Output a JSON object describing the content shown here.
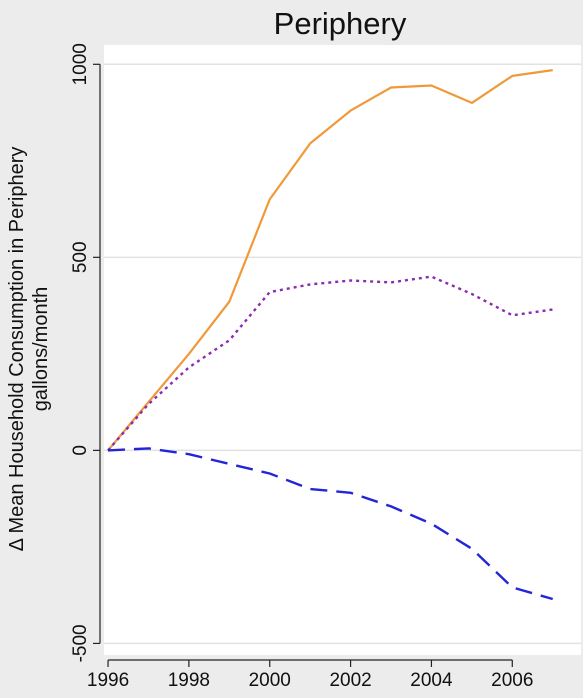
{
  "chart_data": {
    "type": "line",
    "title": "Periphery",
    "ylabel_line1": "Δ Mean Household Consumption in Periphery",
    "ylabel_line2": "gallons/month",
    "xlabel": "",
    "x": [
      1996,
      1997,
      1998,
      1999,
      2000,
      2001,
      2002,
      2003,
      2004,
      2005,
      2006,
      2007
    ],
    "xticks": [
      1996,
      1998,
      2000,
      2002,
      2004,
      2006
    ],
    "yticks": [
      -500,
      0,
      500,
      1000
    ],
    "xlim": [
      1995.9,
      2007.7
    ],
    "ylim": [
      -530,
      1050
    ],
    "grid": true,
    "legend": "none",
    "series": [
      {
        "style": "solid",
        "color": "#f0993a",
        "values": [
          0,
          125,
          250,
          385,
          650,
          795,
          880,
          940,
          945,
          900,
          970,
          985
        ]
      },
      {
        "style": "dotted",
        "color": "#8a2cb0",
        "values": [
          0,
          120,
          215,
          285,
          410,
          430,
          440,
          435,
          450,
          405,
          350,
          365
        ]
      },
      {
        "style": "dashed",
        "color": "#2424d8",
        "values": [
          0,
          5,
          -10,
          -35,
          -60,
          -100,
          -110,
          -145,
          -190,
          -255,
          -355,
          -385
        ]
      }
    ]
  }
}
